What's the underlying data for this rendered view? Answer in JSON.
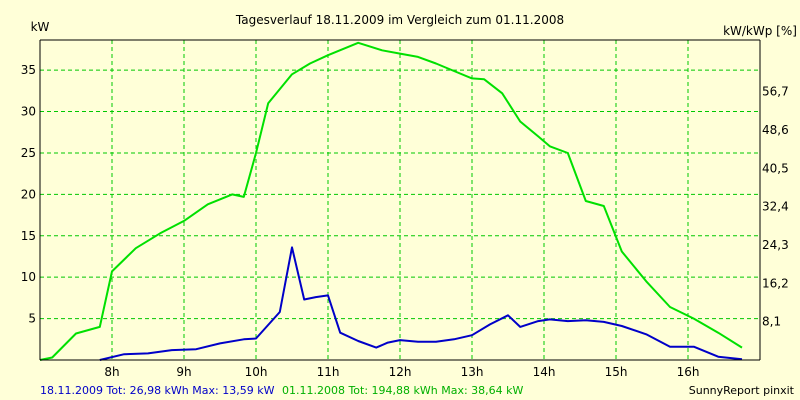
{
  "chart_data": {
    "type": "line",
    "title": "Tagesverlauf 18.11.2009 im Vergleich zum 01.11.2008",
    "ylabel_left": "kW",
    "ylabel_right": "kW/kWp [%]",
    "ylim": [
      0,
      38.64
    ],
    "yticks_left": [
      5,
      10,
      15,
      20,
      25,
      30,
      35
    ],
    "yticks_right": [
      {
        "value": 8.1,
        "label": "8,1"
      },
      {
        "value": 16.2,
        "label": "16,2"
      },
      {
        "value": 24.3,
        "label": "24,3"
      },
      {
        "value": 32.4,
        "label": "32,4"
      },
      {
        "value": 40.5,
        "label": "40,5"
      },
      {
        "value": 48.6,
        "label": "48,6"
      },
      {
        "value": 56.7,
        "label": "56,7"
      }
    ],
    "right_scale_max": 67.6,
    "xlim": [
      7.0,
      17.0
    ],
    "xticks": [
      {
        "value": 8,
        "label": "8h"
      },
      {
        "value": 9,
        "label": "9h"
      },
      {
        "value": 10,
        "label": "10h"
      },
      {
        "value": 11,
        "label": "11h"
      },
      {
        "value": 12,
        "label": "12h"
      },
      {
        "value": 13,
        "label": "13h"
      },
      {
        "value": 14,
        "label": "14h"
      },
      {
        "value": 15,
        "label": "15h"
      },
      {
        "value": 16,
        "label": "16h"
      }
    ],
    "grid": true,
    "series": [
      {
        "color": "#00e000",
        "x": [
          7.0,
          7.17,
          7.5,
          7.83,
          8.0,
          8.33,
          8.67,
          9.0,
          9.33,
          9.67,
          9.83,
          10.0,
          10.17,
          10.5,
          10.75,
          11.0,
          11.25,
          11.42,
          11.75,
          12.0,
          12.25,
          12.5,
          12.75,
          13.0,
          13.17,
          13.42,
          13.67,
          13.92,
          14.08,
          14.33,
          14.58,
          14.83,
          15.08,
          15.42,
          15.75,
          16.08,
          16.42,
          16.75
        ],
        "y": [
          0,
          0.3,
          3.2,
          4.0,
          10.7,
          13.5,
          15.3,
          16.8,
          18.8,
          20.0,
          19.7,
          25.0,
          31.0,
          34.5,
          35.8,
          36.8,
          37.7,
          38.3,
          37.4,
          37.0,
          36.6,
          35.8,
          34.9,
          34.0,
          33.9,
          32.2,
          28.8,
          27.0,
          25.8,
          25.0,
          19.2,
          18.6,
          13.1,
          9.5,
          6.4,
          5.0,
          3.3,
          1.5
        ]
      },
      {
        "color": "#0000c8",
        "x": [
          7.83,
          8.17,
          8.5,
          8.83,
          9.17,
          9.5,
          9.83,
          10.0,
          10.33,
          10.5,
          10.67,
          10.83,
          11.0,
          11.17,
          11.42,
          11.67,
          11.83,
          12.0,
          12.25,
          12.5,
          12.75,
          13.0,
          13.25,
          13.5,
          13.67,
          13.92,
          14.08,
          14.33,
          14.58,
          14.83,
          15.08,
          15.42,
          15.75,
          16.08,
          16.42,
          16.75
        ],
        "y": [
          0,
          0.7,
          0.8,
          1.2,
          1.3,
          2.0,
          2.5,
          2.6,
          5.8,
          13.6,
          7.3,
          7.6,
          7.8,
          3.3,
          2.3,
          1.5,
          2.1,
          2.4,
          2.2,
          2.2,
          2.5,
          3.0,
          4.3,
          5.4,
          4.0,
          4.7,
          4.9,
          4.7,
          4.8,
          4.6,
          4.1,
          3.1,
          1.6,
          1.6,
          0.4,
          0.1
        ]
      }
    ]
  },
  "footer": {
    "blue_text": "18.11.2009 Tot: 26,98 kWh Max: 13,59 kW",
    "green_text": "01.11.2008 Tot: 194,88 kWh Max: 38,64 kW",
    "credit": "SunnyReport pinxit"
  }
}
